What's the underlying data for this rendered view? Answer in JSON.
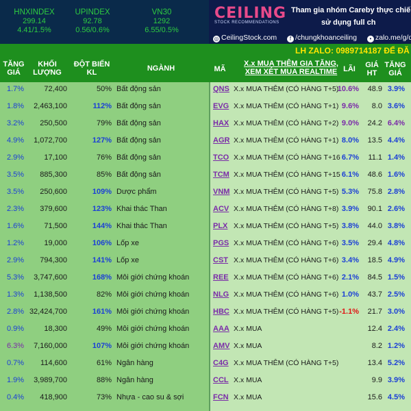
{
  "indices": [
    {
      "name": "HNXINDEX",
      "value": "299.14",
      "change": "4.41/1.5%"
    },
    {
      "name": "UPINDEX",
      "value": "92.78",
      "change": "0.56/0.6%"
    },
    {
      "name": "VN30",
      "value": "1292",
      "change": "6.55/0.5%"
    }
  ],
  "banner": {
    "logo": "CEILING",
    "logo_sub": "STOCK RECOMMENDATIONS",
    "promo_line1": "Tham gia nhóm Careby thực chiến,",
    "promo_line2": "sử dụng full ch",
    "site": "CeilingStock.com",
    "facebook": "/chungkhoanceiling",
    "zalo_link": "zalo.me/g/qgt",
    "zalo_contact": "LH ZALO: 0989714187 ĐỂ ĐĂ"
  },
  "left_headers": {
    "change_l1": "TĂNG",
    "change_l2": "GIÁ",
    "volume_l1": "KHỐI",
    "volume_l2": "LƯỢNG",
    "surge_l1": "ĐỘT BIẾN",
    "surge_l2": "KL",
    "sector": "NGÀNH"
  },
  "right_headers": {
    "code": "MÃ",
    "note_l1": "X.x MUA THÊM GIA TĂNG,",
    "note_l2": "XEM XÉT MUA REALTIME",
    "profit": "LÃI",
    "price_l1": "GIÁ",
    "price_l2": "HT",
    "inc_l1": "TĂNG",
    "inc_l2": "GIÁ"
  },
  "left_rows": [
    {
      "change": "1.7%",
      "volume": "72,400",
      "surge": "50%",
      "sector": "Bất động sản"
    },
    {
      "change": "1.8%",
      "volume": "2,463,100",
      "surge": "112%",
      "sector": "Bất động sản"
    },
    {
      "change": "3.2%",
      "volume": "250,500",
      "surge": "79%",
      "sector": "Bất động sản"
    },
    {
      "change": "4.9%",
      "volume": "1,072,700",
      "surge": "127%",
      "sector": "Bất động sản"
    },
    {
      "change": "2.9%",
      "volume": "17,100",
      "surge": "76%",
      "sector": "Bất động sản"
    },
    {
      "change": "3.5%",
      "volume": "885,300",
      "surge": "85%",
      "sector": "Bất động sản"
    },
    {
      "change": "3.5%",
      "volume": "250,600",
      "surge": "109%",
      "sector": "Dược phẩm"
    },
    {
      "change": "2.3%",
      "volume": "379,600",
      "surge": "123%",
      "sector": "Khai thác Than"
    },
    {
      "change": "1.6%",
      "volume": "71,500",
      "surge": "144%",
      "sector": "Khai thác Than"
    },
    {
      "change": "1.2%",
      "volume": "19,000",
      "surge": "106%",
      "sector": "Lốp xe"
    },
    {
      "change": "2.9%",
      "volume": "794,300",
      "surge": "141%",
      "sector": "Lốp xe"
    },
    {
      "change": "5.3%",
      "volume": "3,747,600",
      "surge": "168%",
      "sector": "Môi giới chứng khoán"
    },
    {
      "change": "1.3%",
      "volume": "1,138,500",
      "surge": "82%",
      "sector": "Môi giới chứng khoán"
    },
    {
      "change": "2.8%",
      "volume": "32,424,700",
      "surge": "161%",
      "sector": "Môi giới chứng khoán"
    },
    {
      "change": "0.9%",
      "volume": "18,300",
      "surge": "49%",
      "sector": "Môi giới chứng khoán"
    },
    {
      "change": "6.3%",
      "volume": "7,160,000",
      "surge": "107%",
      "sector": "Môi giới chứng khoán"
    },
    {
      "change": "0.7%",
      "volume": "114,600",
      "surge": "61%",
      "sector": "Ngân hàng"
    },
    {
      "change": "1.9%",
      "volume": "3,989,700",
      "surge": "88%",
      "sector": "Ngân hàng"
    },
    {
      "change": "0.4%",
      "volume": "418,900",
      "surge": "73%",
      "sector": "Nhựa - cao su & sợi"
    }
  ],
  "right_rows": [
    {
      "code": "QNS",
      "note": "X.x MUA THÊM (CÓ HÀNG T+5)",
      "profit": "10.6%",
      "price": "48.9",
      "inc": "3.9%"
    },
    {
      "code": "EVG",
      "note": "X.x MUA THÊM (CÓ HÀNG T+1)",
      "profit": "9.6%",
      "price": "8.0",
      "inc": "3.6%"
    },
    {
      "code": "HAX",
      "note": "X.x MUA THÊM (CÓ HÀNG T+2)",
      "profit": "9.0%",
      "price": "24.2",
      "inc": "6.4%"
    },
    {
      "code": "AGR",
      "note": "X.x MUA THÊM (CÓ HÀNG T+1)",
      "profit": "8.0%",
      "price": "13.5",
      "inc": "4.4%"
    },
    {
      "code": "TCO",
      "note": "X.x MUA THÊM (CÓ HÀNG T+16",
      "profit": "6.7%",
      "price": "11.1",
      "inc": "1.4%"
    },
    {
      "code": "TCM",
      "note": "X.x MUA THÊM (CÓ HÀNG T+15",
      "profit": "6.1%",
      "price": "48.6",
      "inc": "1.6%"
    },
    {
      "code": "VNM",
      "note": "X.x MUA THÊM (CÓ HÀNG T+5)",
      "profit": "5.3%",
      "price": "75.8",
      "inc": "2.8%"
    },
    {
      "code": "ACV",
      "note": "X.x MUA THÊM (CÓ HÀNG T+8)",
      "profit": "3.9%",
      "price": "90.1",
      "inc": "2.6%"
    },
    {
      "code": "PLX",
      "note": "X.x MUA THÊM (CÓ HÀNG T+5)",
      "profit": "3.8%",
      "price": "44.0",
      "inc": "3.8%"
    },
    {
      "code": "PGS",
      "note": "X.x MUA THÊM (CÓ HÀNG T+6)",
      "profit": "3.5%",
      "price": "29.4",
      "inc": "4.8%"
    },
    {
      "code": "CST",
      "note": "X.x MUA THÊM (CÓ HÀNG T+6)",
      "profit": "3.4%",
      "price": "18.5",
      "inc": "4.9%"
    },
    {
      "code": "REE",
      "note": "X.x MUA THÊM (CÓ HÀNG T+6)",
      "profit": "2.1%",
      "price": "84.5",
      "inc": "1.5%"
    },
    {
      "code": "NLG",
      "note": "X.x MUA THÊM (CÓ HÀNG T+6)",
      "profit": "1.0%",
      "price": "43.7",
      "inc": "2.5%"
    },
    {
      "code": "HBC",
      "note": "X.x MUA THÊM (CÓ HÀNG T+5)",
      "profit": "-1.1%",
      "price": "21.7",
      "inc": "3.0%"
    },
    {
      "code": "AAA",
      "note": "X.x MUA",
      "profit": "",
      "price": "12.4",
      "inc": "2.4%"
    },
    {
      "code": "AMV",
      "note": "X.x MUA",
      "profit": "",
      "price": "8.2",
      "inc": "1.2%"
    },
    {
      "code": "C4G",
      "note": "X.x MUA THÊM (CÓ HÀNG T+5)",
      "profit": "",
      "price": "13.4",
      "inc": "5.2%"
    },
    {
      "code": "CCL",
      "note": "X.x MUA",
      "profit": "",
      "price": "9.9",
      "inc": "3.9%"
    },
    {
      "code": "FCN",
      "note": "X.x MUA",
      "profit": "",
      "price": "15.6",
      "inc": "4.5%"
    }
  ],
  "colors": {
    "positive": "#1b3fd6",
    "strong": "#7a2aa8",
    "negative": "#e01414",
    "header_green": "#1e8f1e",
    "left_bg": "#8fcf80",
    "right_bg": "#c2e6b4"
  }
}
